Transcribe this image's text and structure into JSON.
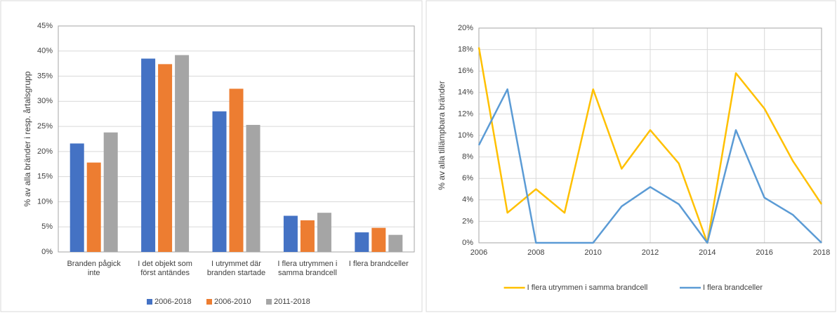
{
  "chart_data": [
    {
      "type": "bar",
      "y_label": "% av alla bränder i resp. årtalsgrupp",
      "categories": [
        "Branden pågick inte",
        "I det objekt som först antändes",
        "I utrymmet där branden startade",
        "I flera utrymmen i samma brandcell",
        "I flera brandceller"
      ],
      "series": [
        {
          "name": "2006-2018",
          "color": "#4472c4",
          "values": [
            21.6,
            38.5,
            28.0,
            7.2,
            3.9
          ]
        },
        {
          "name": "2006-2010",
          "color": "#ed7d31",
          "values": [
            17.8,
            37.4,
            32.5,
            6.3,
            4.8
          ]
        },
        {
          "name": "2011-2018",
          "color": "#a5a5a5",
          "values": [
            23.8,
            39.2,
            25.3,
            7.8,
            3.4
          ]
        }
      ],
      "ylim": [
        0,
        45
      ],
      "yticks": [
        {
          "value": 0,
          "label": "0%"
        },
        {
          "value": 5,
          "label": "5%"
        },
        {
          "value": 10,
          "label": "10%"
        },
        {
          "value": 15,
          "label": "15%"
        },
        {
          "value": 20,
          "label": "20%"
        },
        {
          "value": 25,
          "label": "25%"
        },
        {
          "value": 30,
          "label": "30%"
        },
        {
          "value": 35,
          "label": "35%"
        },
        {
          "value": 40,
          "label": "40%"
        },
        {
          "value": 45,
          "label": "45%"
        }
      ],
      "grid": true,
      "legend": "bottom"
    },
    {
      "type": "line",
      "y_label": "% av alla tillämpbara bränder",
      "x": [
        2006,
        2007,
        2008,
        2009,
        2010,
        2011,
        2012,
        2013,
        2014,
        2015,
        2016,
        2017,
        2018
      ],
      "series": [
        {
          "name": "I flera utrymmen i samma brandcell",
          "color": "#ffc000",
          "values": [
            18.2,
            2.8,
            5.0,
            2.8,
            14.3,
            6.9,
            10.5,
            7.4,
            0,
            15.8,
            12.5,
            7.6,
            3.6
          ]
        },
        {
          "name": "I flera brandceller",
          "color": "#5b9bd5",
          "values": [
            9.1,
            14.3,
            0,
            0,
            0,
            3.4,
            5.2,
            3.6,
            0,
            10.5,
            4.2,
            2.6,
            0
          ]
        }
      ],
      "xlim": [
        2006,
        2018
      ],
      "xticks": [
        2006,
        2008,
        2010,
        2012,
        2014,
        2016,
        2018
      ],
      "ylim": [
        0,
        20
      ],
      "yticks": [
        {
          "value": 0,
          "label": "0%"
        },
        {
          "value": 2,
          "label": "2%"
        },
        {
          "value": 4,
          "label": "4%"
        },
        {
          "value": 6,
          "label": "6%"
        },
        {
          "value": 8,
          "label": "8%"
        },
        {
          "value": 10,
          "label": "10%"
        },
        {
          "value": 12,
          "label": "12%"
        },
        {
          "value": 14,
          "label": "14%"
        },
        {
          "value": 16,
          "label": "16%"
        },
        {
          "value": 18,
          "label": "18%"
        },
        {
          "value": 20,
          "label": "20%"
        }
      ],
      "grid": true,
      "legend": "bottom"
    }
  ]
}
